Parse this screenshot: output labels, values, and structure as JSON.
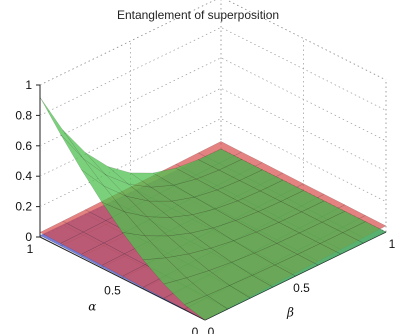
{
  "chart_data": {
    "type": "surface3d",
    "title": "Entanglement of superposition",
    "xlabel": "α",
    "ylabel": "β",
    "zlabel": "",
    "xlim": [
      0,
      1
    ],
    "ylim": [
      0,
      1
    ],
    "zlim": [
      0,
      1
    ],
    "x_ticks": [
      "0",
      "0.5",
      "1"
    ],
    "y_ticks": [
      "0",
      "0.5",
      "1"
    ],
    "z_ticks": [
      "0",
      "0.2",
      "0.4",
      "0.6",
      "0.8",
      "1"
    ],
    "grid": "dotted",
    "series": [
      {
        "color": "#4fc24f",
        "style": "surface",
        "corner_values": {
          "a1_b0": 0.92,
          "a1_b1": 0.0,
          "a0_b0": 0.0,
          "a0_b1": 0.0
        }
      },
      {
        "color": "#d94b4b",
        "style": "plane-segment",
        "corner_values": {
          "a1_b0": 0.03,
          "a1_b1": 0.05,
          "a0_b0": 0.0,
          "a0_b1": 0.04
        }
      },
      {
        "color": "#3b46c8",
        "style": "plane-segment",
        "corner_values": {
          "a1_b0": 0.01,
          "a1_b1": 0.0,
          "a0_b0": 0.0,
          "a0_b1": 0.0
        }
      }
    ]
  }
}
